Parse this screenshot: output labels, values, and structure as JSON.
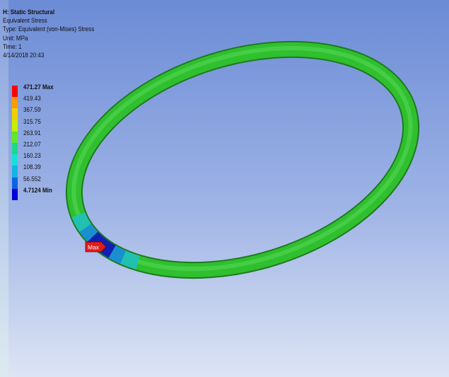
{
  "header": {
    "title": "H: Static Structural",
    "result": "Equivalent Stress",
    "type": "Type: Equivalent (von-Mises) Stress",
    "unit": "Unit: MPa",
    "time": "Time: 1",
    "date": "4/14/2018 20:43"
  },
  "legend": [
    {
      "label": "471.27 Max",
      "color": "#ff0000"
    },
    {
      "label": "419.43",
      "color": "#ff9a00"
    },
    {
      "label": "367.59",
      "color": "#f0d000"
    },
    {
      "label": "315.75",
      "color": "#c8ee00"
    },
    {
      "label": "263.91",
      "color": "#5fe82a"
    },
    {
      "label": "212.07",
      "color": "#1fd88a"
    },
    {
      "label": "160.23",
      "color": "#16e0d8"
    },
    {
      "label": "108.39",
      "color": "#12b4e6"
    },
    {
      "label": "56.552",
      "color": "#0a64e0"
    },
    {
      "label": "4.7124 Min",
      "color": "#0000d8"
    }
  ],
  "probe": {
    "label": "Max"
  }
}
